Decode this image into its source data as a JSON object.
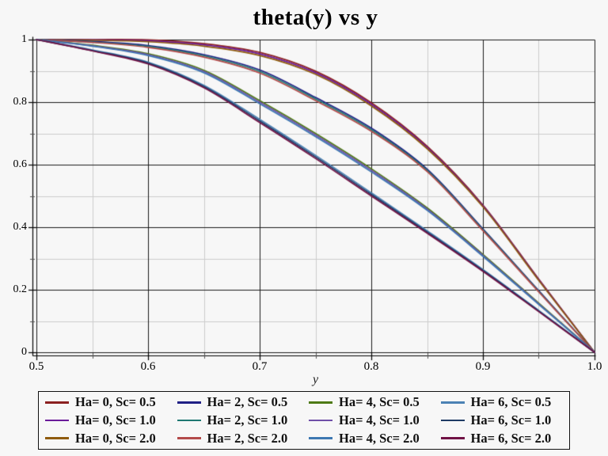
{
  "colors": {
    "background": "#f7f7f7",
    "axis": "#000000",
    "grid_major": "#1a1a1a",
    "grid_minor": "#cccccc",
    "legend_border": "#111111"
  },
  "chart_data": {
    "type": "line",
    "title": "theta(y) vs y",
    "xlabel": "y",
    "ylabel": "",
    "xlim": [
      0.5,
      1.0
    ],
    "ylim": [
      0,
      1
    ],
    "grid": "major-and-minor",
    "legend_position": "bottom",
    "legend_columns": 4,
    "x_ticks": {
      "major": [
        {
          "value": 0.5,
          "label": "0.5"
        },
        {
          "value": 0.6,
          "label": "0.6"
        },
        {
          "value": 0.7,
          "label": "0.7"
        },
        {
          "value": 0.8,
          "label": "0.8"
        },
        {
          "value": 0.9,
          "label": "0.9"
        },
        {
          "value": 1.0,
          "label": "1.0"
        }
      ],
      "minor": [
        0.55,
        0.65,
        0.75,
        0.85,
        0.95
      ]
    },
    "y_ticks": {
      "major": [
        {
          "value": 1.0,
          "label": "1"
        },
        {
          "value": 0.8,
          "label": "0.8"
        },
        {
          "value": 0.6,
          "label": "0.6"
        },
        {
          "value": 0.4,
          "label": "0.4"
        },
        {
          "value": 0.2,
          "label": "0.2"
        },
        {
          "value": 0.0,
          "label": "0"
        }
      ],
      "minor": [
        0.9,
        0.7,
        0.5,
        0.3,
        0.1
      ]
    },
    "x": [
      0.5,
      0.55,
      0.6,
      0.65,
      0.7,
      0.75,
      0.8,
      0.85,
      0.9,
      0.95,
      1.0
    ],
    "series": [
      {
        "name": "Ha= 0, Sc= 0.5",
        "color": "#8B2020",
        "values": [
          1,
          1.0,
          0.999,
          0.987,
          0.959,
          0.899,
          0.798,
          0.659,
          0.471,
          0.234,
          0
        ]
      },
      {
        "name": "Ha= 0, Sc= 1.0",
        "color": "#6A1B9A",
        "values": [
          1,
          0.999,
          0.996,
          0.983,
          0.954,
          0.894,
          0.793,
          0.655,
          0.468,
          0.232,
          0
        ]
      },
      {
        "name": "Ha= 0, Sc= 2.0",
        "color": "#8F5B0E",
        "values": [
          1,
          0.998,
          0.993,
          0.979,
          0.949,
          0.889,
          0.788,
          0.651,
          0.465,
          0.23,
          0
        ]
      },
      {
        "name": "Ha= 2, Sc= 0.5",
        "color": "#202085",
        "values": [
          1,
          0.994,
          0.981,
          0.952,
          0.903,
          0.815,
          0.717,
          0.586,
          0.395,
          0.197,
          0
        ]
      },
      {
        "name": "Ha= 2, Sc= 1.0",
        "color": "#1F7872",
        "values": [
          1,
          0.992,
          0.978,
          0.948,
          0.898,
          0.81,
          0.712,
          0.582,
          0.392,
          0.195,
          0
        ]
      },
      {
        "name": "Ha= 2, Sc= 2.0",
        "color": "#B34A4A",
        "values": [
          1,
          0.991,
          0.975,
          0.944,
          0.893,
          0.805,
          0.707,
          0.578,
          0.389,
          0.193,
          0
        ]
      },
      {
        "name": "Ha= 4, Sc= 0.5",
        "color": "#4E7A15",
        "values": [
          1,
          0.982,
          0.955,
          0.902,
          0.805,
          0.7,
          0.587,
          0.462,
          0.313,
          0.157,
          0
        ]
      },
      {
        "name": "Ha= 4, Sc= 1.0",
        "color": "#6F4FA8",
        "values": [
          1,
          0.98,
          0.952,
          0.898,
          0.8,
          0.695,
          0.582,
          0.458,
          0.31,
          0.155,
          0
        ]
      },
      {
        "name": "Ha= 4, Sc= 2.0",
        "color": "#3D78B2",
        "values": [
          1,
          0.979,
          0.949,
          0.894,
          0.795,
          0.69,
          0.577,
          0.454,
          0.307,
          0.153,
          0
        ]
      },
      {
        "name": "Ha= 6, Sc= 0.5",
        "color": "#4C82B4",
        "values": [
          1,
          0.967,
          0.928,
          0.854,
          0.745,
          0.63,
          0.51,
          0.389,
          0.265,
          0.134,
          0
        ]
      },
      {
        "name": "Ha= 6, Sc= 1.0",
        "color": "#1E3A64",
        "values": [
          1,
          0.965,
          0.925,
          0.85,
          0.74,
          0.625,
          0.505,
          0.385,
          0.262,
          0.132,
          0
        ]
      },
      {
        "name": "Ha= 6, Sc= 2.0",
        "color": "#701245",
        "values": [
          1,
          0.964,
          0.922,
          0.846,
          0.735,
          0.62,
          0.5,
          0.381,
          0.259,
          0.13,
          0
        ]
      }
    ]
  }
}
